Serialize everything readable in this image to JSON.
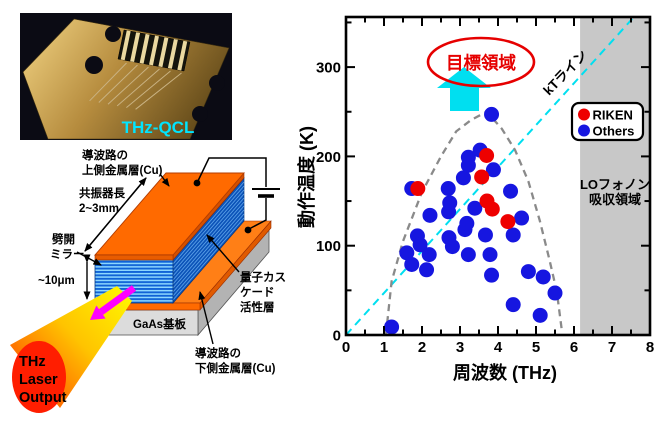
{
  "photo": {
    "caption": "THz-QCL"
  },
  "schematic": {
    "top_metal_line1": "導波路の",
    "top_metal_line2": "上側金属層(Cu)",
    "resonator_line1": "共振器長",
    "resonator_line2": "2~3mm",
    "mirror_line1": "劈開",
    "mirror_line2": "ミラー",
    "thickness": "~10μm",
    "active_line1": "量子カス",
    "active_line2": "ケード",
    "active_line3": "活性層",
    "substrate": "GaAs基板",
    "bottom_metal_line1": "導波路の",
    "bottom_metal_line2": "下側金属層(Cu)",
    "output_line1": "THz",
    "output_line2": "Laser",
    "output_line3": "Output"
  },
  "chart": {
    "xlabel": "周波数 (THz)",
    "ylabel": "動作温度 (K)",
    "x_tick_labels": [
      "0",
      "1",
      "2",
      "3",
      "4",
      "5",
      "6",
      "7",
      "8"
    ],
    "y_tick_labels": [
      "0",
      "100",
      "200",
      "300"
    ],
    "target_label": "目標領域",
    "kt_label": "kTライン",
    "lo_region_line1": "LOフォノン",
    "lo_region_line2": "吸収領域",
    "legend": [
      {
        "label": "RIKEN",
        "color": "#ee0000"
      },
      {
        "label": "Others",
        "color": "#1616e0"
      }
    ]
  },
  "chart_data": {
    "type": "scatter",
    "xlabel": "周波数 (THz)",
    "ylabel": "動作温度 (K)",
    "xlim": [
      0,
      8
    ],
    "ylim": [
      0,
      356
    ],
    "x_major_tick": 1,
    "x_minor_tick": 0.5,
    "y_major_tick": 100,
    "y_minor_tick": 50,
    "grid": false,
    "legend_position": "right",
    "series": [
      {
        "name": "RIKEN",
        "color": "#ee0000",
        "points": [
          [
            1.89,
            164
          ],
          [
            3.57,
            177
          ],
          [
            3.7,
            201
          ],
          [
            3.71,
            150
          ],
          [
            3.85,
            141
          ],
          [
            4.26,
            127
          ]
        ]
      },
      {
        "name": "Others",
        "color": "#1616e0",
        "points": [
          [
            1.2,
            9
          ],
          [
            1.6,
            92
          ],
          [
            1.73,
            164
          ],
          [
            1.73,
            79
          ],
          [
            1.88,
            111
          ],
          [
            1.95,
            101
          ],
          [
            2.12,
            73
          ],
          [
            2.19,
            90
          ],
          [
            2.21,
            134
          ],
          [
            2.69,
            164
          ],
          [
            2.7,
            138
          ],
          [
            2.71,
            109
          ],
          [
            2.73,
            148
          ],
          [
            2.8,
            99
          ],
          [
            3.09,
            176
          ],
          [
            3.13,
            118
          ],
          [
            3.18,
            125
          ],
          [
            3.22,
            199
          ],
          [
            3.22,
            190
          ],
          [
            3.22,
            90
          ],
          [
            3.39,
            142
          ],
          [
            3.53,
            207
          ],
          [
            3.67,
            112
          ],
          [
            3.79,
            90
          ],
          [
            3.83,
            247
          ],
          [
            3.83,
            67
          ],
          [
            3.88,
            185
          ],
          [
            4.33,
            161
          ],
          [
            4.4,
            112
          ],
          [
            4.4,
            34
          ],
          [
            4.62,
            131
          ],
          [
            4.8,
            71
          ],
          [
            5.11,
            22
          ],
          [
            5.19,
            65
          ],
          [
            5.5,
            47
          ]
        ]
      }
    ],
    "annotations": {
      "kt_line": {
        "label": "kTライン",
        "slope_k_per_thz": 47,
        "color": "#00dff0",
        "style": "dashed"
      },
      "envelope": {
        "color": "#8a8a8a",
        "style": "dashed",
        "points": [
          [
            1.05,
            0
          ],
          [
            1.2,
            60
          ],
          [
            1.5,
            105
          ],
          [
            2.0,
            160
          ],
          [
            2.5,
            200
          ],
          [
            2.9,
            228
          ],
          [
            3.3,
            241
          ],
          [
            3.7,
            250
          ],
          [
            4.1,
            231
          ],
          [
            4.45,
            207
          ],
          [
            4.8,
            172
          ],
          [
            5.1,
            128
          ],
          [
            5.35,
            85
          ],
          [
            5.55,
            48
          ],
          [
            5.68,
            5
          ]
        ]
      },
      "lo_phonon_region": {
        "label": "LOフォノン吸収領域",
        "x_start": 6.16,
        "x_end": 8,
        "color": "#c8c8c8"
      },
      "target": {
        "label": "目標領域",
        "color": "#e60000"
      }
    }
  }
}
